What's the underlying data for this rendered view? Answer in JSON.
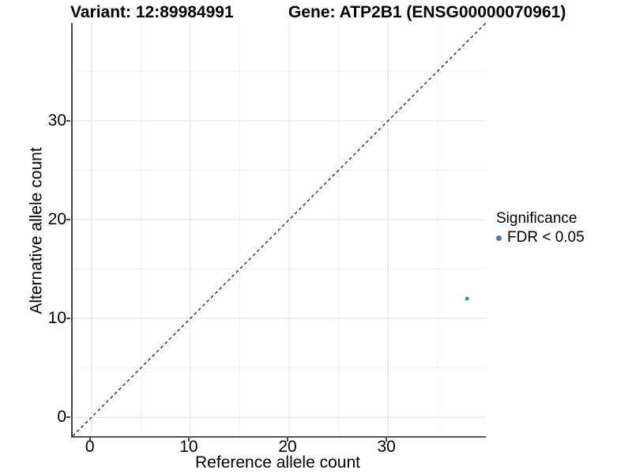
{
  "title": {
    "variant": "Variant: 12:89984991",
    "gene": "Gene: ATP2B1 (ENSG00000070961)"
  },
  "chart_data": {
    "type": "scatter",
    "xlabel": "Reference allele count",
    "ylabel": "Alternative allele count",
    "xlim": [
      -1.9,
      39.9
    ],
    "ylim": [
      -1.9,
      39.9
    ],
    "xticks": [
      0,
      10,
      20,
      30
    ],
    "yticks": [
      0,
      10,
      20,
      30
    ],
    "xticks_minor": [
      5,
      15,
      25,
      35
    ],
    "yticks_minor": [
      5,
      15,
      25,
      35
    ],
    "grid": "on",
    "points": [
      {
        "x": 38,
        "y": 12,
        "series": "FDR < 0.05"
      }
    ],
    "reference_line": {
      "type": "identity",
      "slope": 1,
      "intercept": 0,
      "style": "dashed"
    },
    "legend": {
      "title": "Significance",
      "position": "right",
      "entries": [
        {
          "label": "FDR < 0.05",
          "color": "#4e79ae"
        }
      ]
    },
    "colors": {
      "point": "#4e79ae",
      "grid_major": "#e7e7e7",
      "grid_minor": "#f2f2f2",
      "axis_line": "#444444",
      "reference_line": "#1f1f1f",
      "text": "#000000"
    }
  }
}
